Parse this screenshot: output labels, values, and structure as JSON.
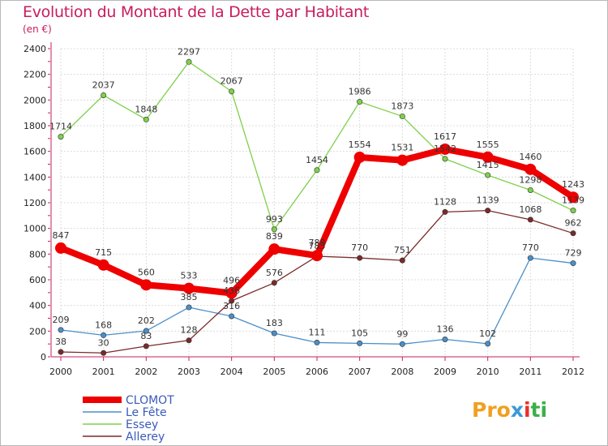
{
  "chart_data": {
    "type": "line",
    "title": "Evolution du Montant de la Dette par Habitant",
    "subtitle": "(en €)",
    "xlabel": "",
    "ylabel": "",
    "ylim": [
      0,
      2400
    ],
    "yticks": [
      0,
      200,
      400,
      600,
      800,
      1000,
      1200,
      1400,
      1600,
      1800,
      2000,
      2200,
      2400
    ],
    "x": [
      "2000",
      "2001",
      "2002",
      "2003",
      "2004",
      "2005",
      "2006",
      "2007",
      "2008",
      "2009",
      "2010",
      "2011",
      "2012"
    ],
    "grid": true,
    "series": [
      {
        "name": "Le Fête",
        "color": "#4a8fc9",
        "values": [
          209,
          168,
          202,
          385,
          316,
          183,
          111,
          105,
          99,
          136,
          102,
          770,
          729
        ],
        "labels": [
          "209",
          "168",
          "202",
          "385",
          "316",
          "183",
          "111",
          "105",
          "99",
          "136",
          "102",
          "770",
          "729"
        ]
      },
      {
        "name": "Essey",
        "color": "#7fd04a",
        "values": [
          1714,
          2037,
          1848,
          2297,
          2067,
          993,
          1454,
          1986,
          1873,
          1542,
          1415,
          1298,
          1139
        ],
        "labels": [
          "1714",
          "2037",
          "1848",
          "2297",
          "2067",
          "993",
          "1454",
          "1986",
          "1873",
          "1542",
          "1415",
          "1298",
          "1139"
        ]
      },
      {
        "name": "Allerey",
        "color": "#7a2a2a",
        "values": [
          38,
          30,
          83,
          128,
          436,
          576,
          783,
          770,
          751,
          1128,
          1139,
          1068,
          962
        ],
        "labels": [
          "38",
          "30",
          "83",
          "128",
          "436",
          "576",
          "783",
          "770",
          "751",
          "1128",
          "1139",
          "1068",
          "962"
        ]
      },
      {
        "name": "CLOMOT",
        "color": "#ee0000",
        "values": [
          847,
          715,
          560,
          533,
          496,
          839,
          788,
          1554,
          1531,
          1617,
          1555,
          1460,
          1243
        ],
        "labels": [
          "847",
          "715",
          "560",
          "533",
          "496",
          "839",
          "788",
          "1554",
          "1531",
          "1617",
          "1555",
          "1460",
          "1243"
        ]
      }
    ],
    "legend": [
      {
        "name": "CLOMOT",
        "color": "#ee0000"
      },
      {
        "name": "Le Fête",
        "color": "#4a8fc9"
      },
      {
        "name": "Essey",
        "color": "#7fd04a"
      },
      {
        "name": "Allerey",
        "color": "#7a2a2a"
      }
    ],
    "legend_position": "bottom-left"
  },
  "logo": {
    "p1": "Pro",
    "p2": "x",
    "p3": "i",
    "p4": "ti"
  }
}
